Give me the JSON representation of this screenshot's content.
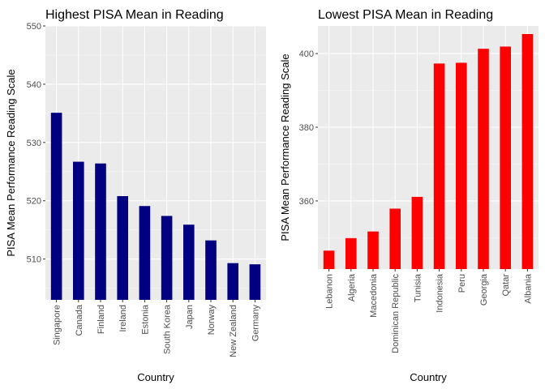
{
  "chart_data": [
    {
      "type": "bar",
      "title": "Highest PISA Mean in Reading",
      "xlabel": "Country",
      "ylabel": "PISA Mean Performance Reading Scale",
      "categories": [
        "Singapore",
        "Canada",
        "Finland",
        "Ireland",
        "Estonia",
        "South Korea",
        "Japan",
        "Norway",
        "New Zealand",
        "Germany"
      ],
      "values": [
        535.1,
        526.7,
        526.4,
        520.8,
        519.1,
        517.4,
        515.9,
        513.2,
        509.3,
        509.1
      ],
      "yticks": [
        510,
        520,
        530,
        540,
        550
      ],
      "ylim": [
        503,
        550
      ],
      "bar_color": "#000080",
      "grid": true,
      "legend": "none"
    },
    {
      "type": "bar",
      "title": "Lowest PISA Mean in Reading",
      "xlabel": "Country",
      "ylabel": "PISA Mean Performance Reading Scale",
      "categories": [
        "Lebanon",
        "Algeria",
        "Macedonia",
        "Dominican Republic",
        "Tunisia",
        "Indonesia",
        "Peru",
        "Georgia",
        "Qatar",
        "Albania"
      ],
      "values": [
        346.5,
        349.9,
        351.7,
        357.9,
        361.1,
        397.3,
        397.5,
        401.3,
        401.9,
        405.3
      ],
      "yticks": [
        360,
        380,
        400
      ],
      "ylim": [
        341.5,
        407.5
      ],
      "bar_color": "#ff0000",
      "grid": true,
      "legend": "none"
    }
  ]
}
